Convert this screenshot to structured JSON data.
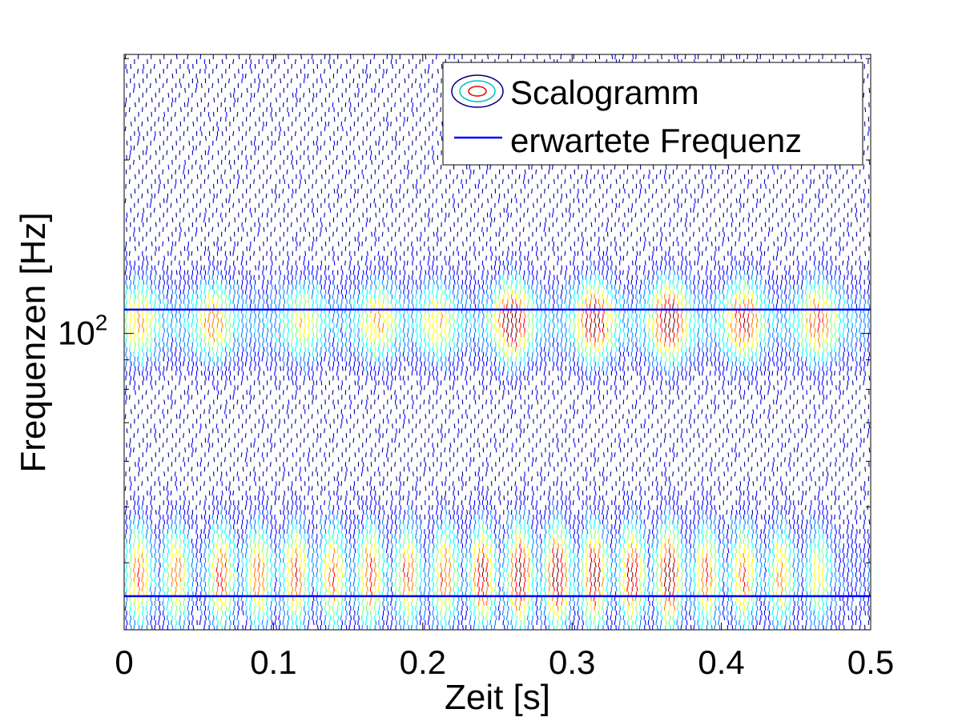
{
  "chart_data": {
    "type": "contour",
    "xlabel": "Zeit [s]",
    "ylabel": "Frequenzen [Hz]",
    "xlim": [
      0,
      0.5
    ],
    "x_ticks": [
      "0",
      "0.1",
      "0.2",
      "0.3",
      "0.4",
      "0.5"
    ],
    "y_scale": "log",
    "y_tick_labels": [
      {
        "base": "10",
        "exp": "2",
        "value": 100
      }
    ],
    "legend": {
      "position": "top-right",
      "entries": [
        {
          "label": "Scalogramm",
          "kind": "contour"
        },
        {
          "label": "erwartete Frequenz",
          "kind": "line",
          "color": "#0000ff"
        }
      ]
    },
    "expected_frequency_lines": [
      {
        "name": "erwartete Frequenz",
        "y": 110
      },
      {
        "name": "erwartete Frequenz",
        "y": 35
      }
    ],
    "energy_bands": [
      {
        "frequency": 105,
        "peak_times": [
          0.01,
          0.06,
          0.12,
          0.17,
          0.21,
          0.26,
          0.315,
          0.365,
          0.415,
          0.465
        ],
        "peak_levels": [
          0.55,
          0.6,
          0.45,
          0.55,
          0.5,
          0.95,
          0.9,
          0.95,
          0.8,
          0.7
        ]
      },
      {
        "frequency": 38,
        "peak_times": [
          0.01,
          0.035,
          0.065,
          0.09,
          0.115,
          0.14,
          0.165,
          0.19,
          0.215,
          0.24,
          0.265,
          0.29,
          0.315,
          0.34,
          0.365,
          0.39,
          0.415,
          0.44,
          0.465
        ],
        "peak_levels": [
          0.7,
          0.65,
          0.75,
          0.7,
          0.75,
          0.7,
          0.75,
          0.7,
          0.7,
          0.85,
          0.95,
          0.95,
          0.9,
          0.85,
          0.95,
          0.7,
          0.7,
          0.6,
          0.5
        ]
      }
    ],
    "colormap": [
      "#00008f",
      "#0000ff",
      "#0080ff",
      "#00ffff",
      "#80ff80",
      "#ffff00",
      "#ff8000",
      "#ff0000",
      "#800000"
    ],
    "grid": false
  }
}
